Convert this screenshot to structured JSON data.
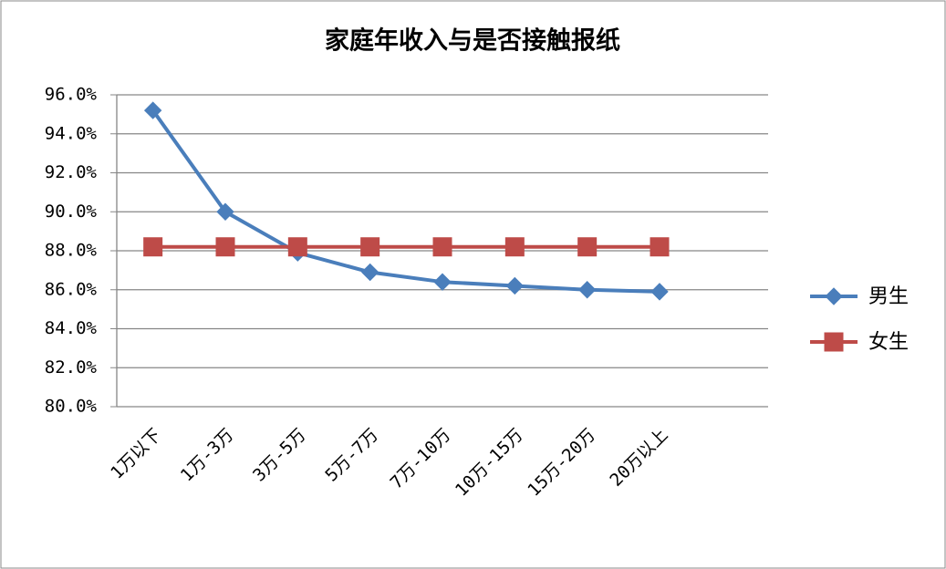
{
  "chart_data": {
    "type": "line",
    "title": "家庭年收入与是否接触报纸",
    "categories": [
      "1万以下",
      "1万-3万",
      "3万-5万",
      "5万-7万",
      "7万-10万",
      "10万-15万",
      "15万-20万",
      "20万以上",
      null
    ],
    "series": [
      {
        "name": "男生",
        "color": "#4a7ebb",
        "marker": "diamond",
        "values": [
          95.2,
          90.0,
          87.9,
          86.9,
          86.4,
          86.2,
          86.0,
          85.9,
          null
        ]
      },
      {
        "name": "女生",
        "color": "#be4b48",
        "marker": "square",
        "values": [
          88.2,
          88.2,
          88.2,
          88.2,
          88.2,
          88.2,
          88.2,
          88.2,
          null
        ]
      }
    ],
    "ylim": [
      80,
      96
    ],
    "yticks": [
      {
        "value": 80,
        "label": "80.0%"
      },
      {
        "value": 82,
        "label": "82.0%"
      },
      {
        "value": 84,
        "label": "84.0%"
      },
      {
        "value": 86,
        "label": "86.0%"
      },
      {
        "value": 88,
        "label": "88.0%"
      },
      {
        "value": 90,
        "label": "90.0%"
      },
      {
        "value": 92,
        "label": "92.0%"
      },
      {
        "value": 94,
        "label": "94.0%"
      },
      {
        "value": 96,
        "label": "96.0%"
      }
    ],
    "grid": true,
    "legend": "right"
  }
}
